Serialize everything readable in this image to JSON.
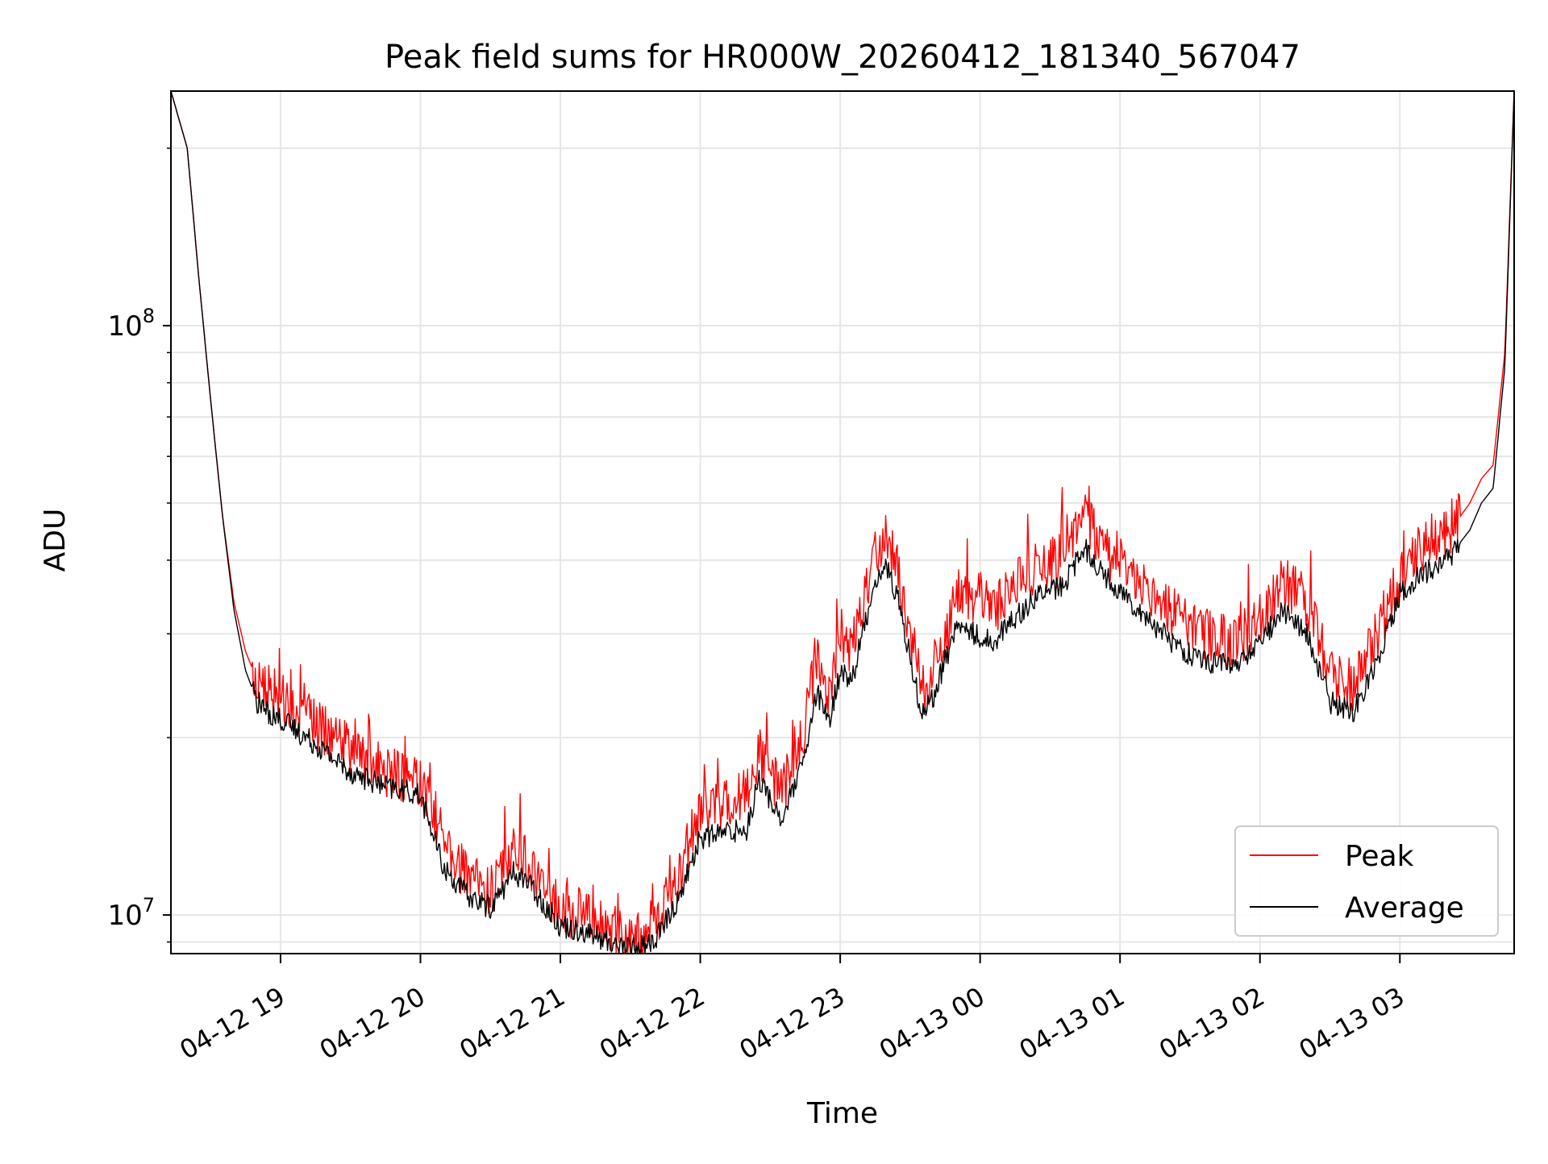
{
  "chart_data": {
    "type": "line",
    "title": "Peak field sums for HR000W_20260412_181340_567047",
    "xlabel": "Time",
    "ylabel": "ADU",
    "yscale": "log",
    "grid": true,
    "legend_position": "lower right",
    "xlim": [
      "2026-04-12 18:13",
      "2026-04-13 03:49"
    ],
    "ylim": [
      8600000,
      250000000
    ],
    "x_ticks": [
      "04-12 19",
      "04-12 20",
      "04-12 21",
      "04-12 22",
      "04-12 23",
      "04-13 00",
      "04-13 01",
      "04-13 02",
      "04-13 03"
    ],
    "y_major_ticks": [
      {
        "base": "10",
        "exp": "7",
        "value": 10000000
      },
      {
        "base": "10",
        "exp": "8",
        "value": 100000000
      }
    ],
    "x": [
      "2026-04-12 18:13",
      "2026-04-12 18:20",
      "2026-04-12 18:25",
      "2026-04-12 18:30",
      "2026-04-12 18:35",
      "2026-04-12 18:40",
      "2026-04-12 18:45",
      "2026-04-12 18:50",
      "2026-04-12 18:55",
      "2026-04-12 19:00",
      "2026-04-12 19:15",
      "2026-04-12 19:30",
      "2026-04-12 19:45",
      "2026-04-12 20:00",
      "2026-04-12 20:10",
      "2026-04-12 20:20",
      "2026-04-12 20:30",
      "2026-04-12 20:40",
      "2026-04-12 20:45",
      "2026-04-12 20:55",
      "2026-04-12 21:00",
      "2026-04-12 21:10",
      "2026-04-12 21:20",
      "2026-04-12 21:30",
      "2026-04-12 21:40",
      "2026-04-12 21:50",
      "2026-04-12 22:00",
      "2026-04-12 22:10",
      "2026-04-12 22:20",
      "2026-04-12 22:25",
      "2026-04-12 22:35",
      "2026-04-12 22:45",
      "2026-04-12 22:50",
      "2026-04-12 22:55",
      "2026-04-12 23:00",
      "2026-04-12 23:05",
      "2026-04-12 23:15",
      "2026-04-12 23:20",
      "2026-04-12 23:25",
      "2026-04-12 23:35",
      "2026-04-12 23:40",
      "2026-04-12 23:50",
      "2026-04-13 00:05",
      "2026-04-13 00:15",
      "2026-04-13 00:25",
      "2026-04-13 00:35",
      "2026-04-13 00:45",
      "2026-04-13 00:55",
      "2026-04-13 01:05",
      "2026-04-13 01:15",
      "2026-04-13 01:25",
      "2026-04-13 01:35",
      "2026-04-13 01:50",
      "2026-04-13 02:00",
      "2026-04-13 02:10",
      "2026-04-13 02:20",
      "2026-04-13 02:30",
      "2026-04-13 02:40",
      "2026-04-13 02:50",
      "2026-04-13 03:00",
      "2026-04-13 03:10",
      "2026-04-13 03:20",
      "2026-04-13 03:30",
      "2026-04-13 03:35",
      "2026-04-13 03:40",
      "2026-04-13 03:45",
      "2026-04-13 03:49"
    ],
    "series": [
      {
        "name": "Peak",
        "color": "#ff0000",
        "values": [
          250000000,
          200000000,
          120000000,
          75000000,
          48000000,
          34000000,
          28000000,
          25000000,
          24000000,
          23500000,
          21000000,
          19000000,
          17500000,
          17000000,
          13500000,
          11500000,
          11000000,
          13000000,
          12500000,
          11000000,
          10200000,
          10000000,
          9500000,
          9200000,
          9600000,
          11500000,
          15000000,
          15500000,
          16000000,
          19000000,
          16000000,
          21000000,
          28000000,
          23000000,
          30000000,
          28000000,
          42000000,
          44000000,
          38000000,
          24000000,
          26000000,
          35000000,
          33000000,
          36000000,
          39000000,
          40000000,
          47000000,
          41000000,
          38000000,
          35000000,
          32000000,
          30000000,
          29000000,
          32000000,
          37000000,
          34000000,
          26000000,
          24500000,
          30000000,
          38000000,
          42000000,
          44000000,
          50000000,
          55000000,
          58000000,
          90000000,
          250000000
        ]
      },
      {
        "name": "Average",
        "color": "#000000",
        "values": [
          250000000,
          200000000,
          120000000,
          75000000,
          48000000,
          33000000,
          26000000,
          23000000,
          22000000,
          21500000,
          19500000,
          17500000,
          16500000,
          16000000,
          12000000,
          10800000,
          10300000,
          11800000,
          11500000,
          10200000,
          9600000,
          9400000,
          9000000,
          8800000,
          9000000,
          10500000,
          13500000,
          13800000,
          14000000,
          17000000,
          14500000,
          18500000,
          24000000,
          21000000,
          26000000,
          25000000,
          37000000,
          39000000,
          34000000,
          22000000,
          23500000,
          31000000,
          29000000,
          32000000,
          35000000,
          36000000,
          42000000,
          37000000,
          34000000,
          31000000,
          28500000,
          27000000,
          26500000,
          29000000,
          33000000,
          30000000,
          23000000,
          22000000,
          27000000,
          35000000,
          38000000,
          40000000,
          45000000,
          50000000,
          53000000,
          85000000,
          250000000
        ]
      }
    ]
  }
}
